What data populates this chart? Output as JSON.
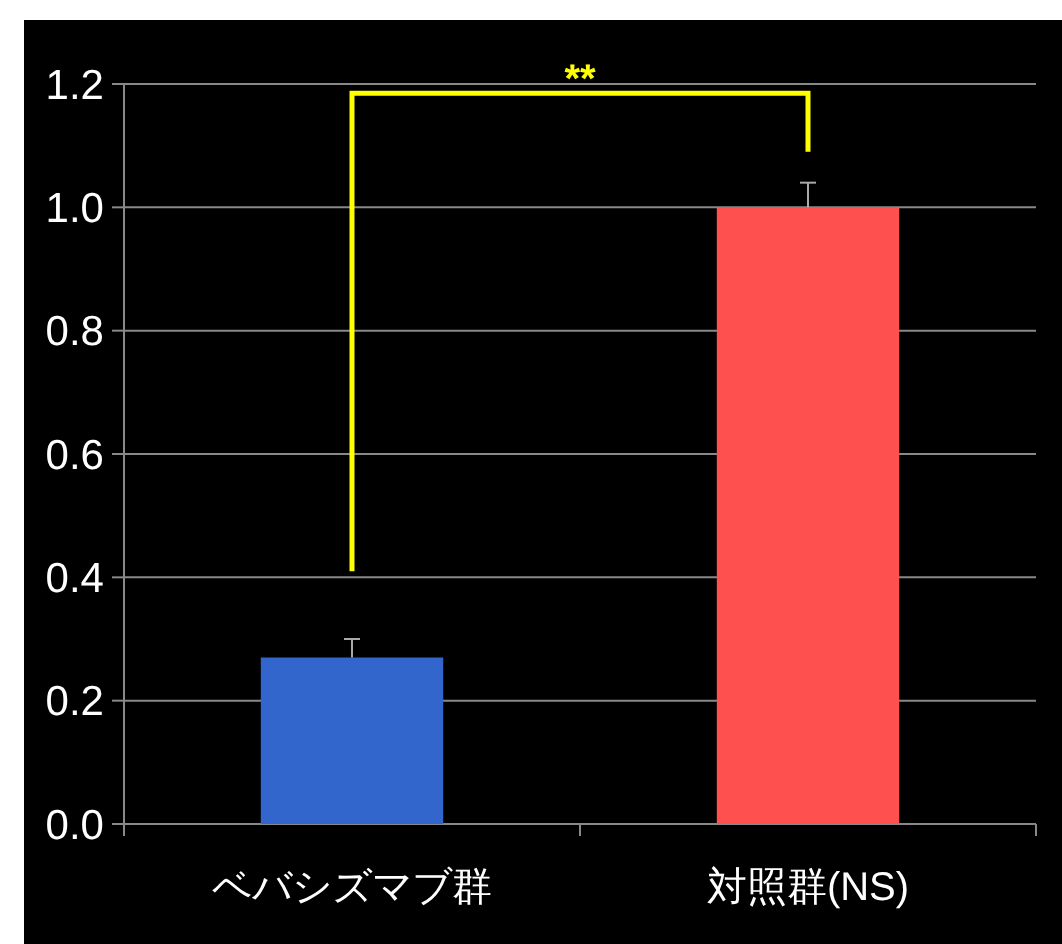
{
  "chart_data": {
    "type": "bar",
    "categories": [
      "ベバシズマブ群",
      "対照群(NS)"
    ],
    "values": [
      0.27,
      1.0
    ],
    "colors": [
      "#3366cc",
      "#ff5050"
    ],
    "errors": [
      [
        0.27,
        0.3
      ],
      [
        1.0,
        1.04
      ]
    ],
    "ylim": [
      0,
      1.2
    ],
    "yticks": [
      {
        "value": 0,
        "label": "0.0"
      },
      {
        "value": 0.2,
        "label": "0.2"
      },
      {
        "value": 0.4,
        "label": "0.4"
      },
      {
        "value": 0.6,
        "label": "0.6"
      },
      {
        "value": 0.8,
        "label": "0.8"
      },
      {
        "value": 1.0,
        "label": "1.0"
      },
      {
        "value": 1.2,
        "label": "1.2"
      }
    ],
    "grid": "y",
    "annotations": [
      "**"
    ]
  }
}
